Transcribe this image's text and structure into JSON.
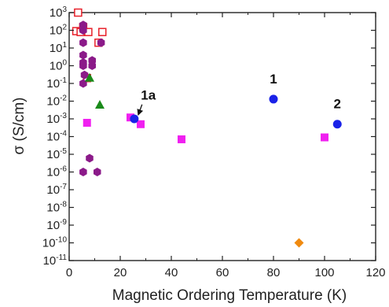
{
  "chart_data": {
    "type": "scatter",
    "xlabel": "Magnetic Ordering Temperature (K)",
    "ylabel": "σ (S/cm)",
    "xlim": [
      0,
      120
    ],
    "ylim_log10": [
      -11,
      3
    ],
    "y_scale": "log",
    "grid": false,
    "legend": "none",
    "x_ticks": [
      "0",
      "20",
      "40",
      "60",
      "80",
      "100",
      "120"
    ],
    "y_tick_base": "10",
    "y_tick_exponents": [
      "3",
      "2",
      "1",
      "0",
      "-1",
      "-2",
      "-3",
      "-4",
      "-5",
      "-6",
      "-7",
      "-8",
      "-9",
      "-10",
      "-11"
    ],
    "series": [
      {
        "marker": "square-open",
        "color": "#e8202a",
        "points": [
          [
            3.5,
            1000
          ],
          [
            2.8,
            90
          ],
          [
            4.5,
            80
          ],
          [
            5.5,
            150
          ],
          [
            7.5,
            80
          ],
          [
            11.5,
            20
          ],
          [
            13,
            80
          ],
          [
            7,
            0.2
          ]
        ]
      },
      {
        "marker": "hexagon",
        "color": "#8b1a89",
        "points": [
          [
            5.5,
            200
          ],
          [
            5.5,
            100
          ],
          [
            5.5,
            20
          ],
          [
            5.5,
            4
          ],
          [
            5.5,
            1.5
          ],
          [
            5.5,
            1
          ],
          [
            5.5,
            0.1
          ],
          [
            9,
            2
          ],
          [
            9,
            1
          ],
          [
            12.5,
            20
          ],
          [
            6,
            0.3
          ],
          [
            8,
            6e-06
          ],
          [
            5.5,
            1e-06
          ],
          [
            11,
            1e-06
          ]
        ]
      },
      {
        "marker": "triangle",
        "color": "#1a8a1a",
        "points": [
          [
            8,
            0.2
          ],
          [
            12,
            0.006
          ]
        ]
      },
      {
        "marker": "square",
        "color": "#f020f0",
        "points": [
          [
            7,
            0.0006
          ],
          [
            24,
            0.0012
          ],
          [
            28,
            0.0005
          ],
          [
            44,
            7e-05
          ],
          [
            100,
            9e-05
          ]
        ]
      },
      {
        "marker": "circle",
        "color": "#1a22e8",
        "points": [
          [
            25.5,
            0.001
          ],
          [
            80,
            0.013
          ],
          [
            105,
            0.0005
          ]
        ]
      },
      {
        "marker": "diamond",
        "color": "#f08a10",
        "points": [
          [
            90,
            1e-10
          ]
        ]
      }
    ],
    "annotations": [
      {
        "text": "1a",
        "x": 31,
        "y": 0.012,
        "arrow_to": [
          25.5,
          0.001
        ]
      },
      {
        "text": "1",
        "x": 80,
        "y": 0.1
      },
      {
        "text": "2",
        "x": 105,
        "y": 0.004
      }
    ]
  }
}
